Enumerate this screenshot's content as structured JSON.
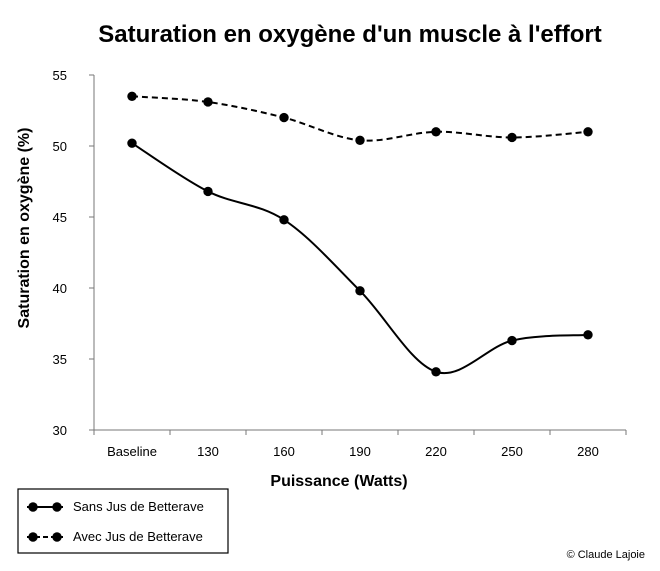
{
  "chart_data": {
    "type": "line",
    "title": "Saturation en oxygène d'un muscle à l'effort",
    "xlabel": "Puissance (Watts)",
    "ylabel": "Saturation en oxygène (%)",
    "categories": [
      "Baseline",
      "130",
      "160",
      "190",
      "220",
      "250",
      "280"
    ],
    "ylim": [
      30,
      55
    ],
    "yticks": [
      30,
      35,
      40,
      45,
      50,
      55
    ],
    "grid": false,
    "legend_position": "bottom-left",
    "series": [
      {
        "name": "Sans Jus de Betterave",
        "values": [
          50.2,
          46.8,
          44.8,
          39.8,
          34.1,
          36.3,
          36.7
        ],
        "line_style": "solid",
        "color": "#000000"
      },
      {
        "name": "Avec Jus de Betterave",
        "values": [
          53.5,
          53.1,
          52.0,
          50.4,
          51.0,
          50.6,
          51.0
        ],
        "line_style": "dashed",
        "color": "#000000"
      }
    ]
  },
  "credit": "© Claude Lajoie"
}
